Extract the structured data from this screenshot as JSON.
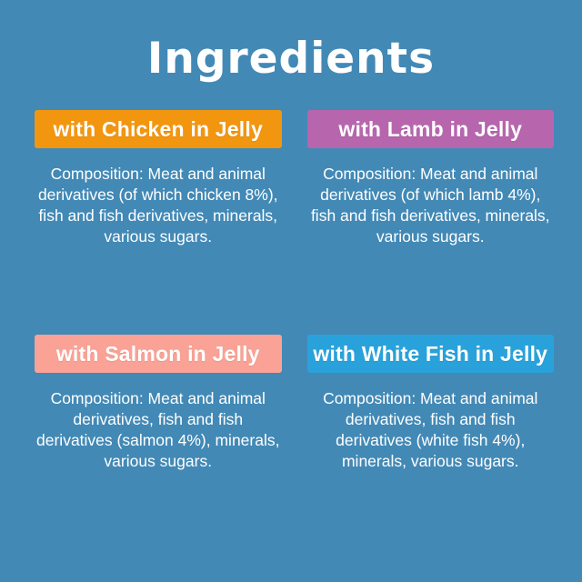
{
  "page": {
    "title": "Ingredients",
    "background_color": "#4289B6",
    "text_color": "#FFFFFF"
  },
  "cards": [
    {
      "header": "with Chicken in Jelly",
      "header_color": "#F3960F",
      "composition": "Composition: Meat and animal\nderivatives (of which chicken 8%),\nfish and fish derivatives, minerals,\nvarious sugars."
    },
    {
      "header": "with Lamb in Jelly",
      "header_color": "#B766AE",
      "composition": "Composition: Meat and animal\nderivatives (of which lamb 4%),\nfish and fish derivatives, minerals,\nvarious sugars."
    },
    {
      "header": "with Salmon in Jelly",
      "header_color": "#F9A295",
      "composition": "Composition: Meat and animal\nderivatives, fish and fish\nderivatives (salmon 4%), minerals,\nvarious sugars."
    },
    {
      "header": "with White Fish in Jelly",
      "header_color": "#29A2DB",
      "composition": "Composition: Meat and animal\nderivatives, fish and fish\nderivatives (white fish 4%),\nminerals, various sugars."
    }
  ]
}
